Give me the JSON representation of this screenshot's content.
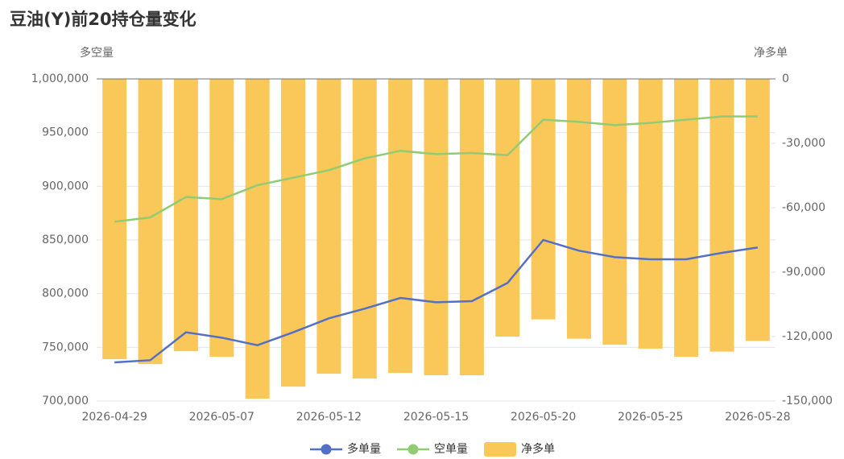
{
  "chart_data": {
    "type": "bar",
    "title": "豆油(Y)前20持仓量变化",
    "y_label": "多空量",
    "y2_label": "净多单",
    "categories": [
      "2026-04-29",
      null,
      null,
      "2026-05-07",
      null,
      null,
      "2026-05-12",
      null,
      null,
      "2026-05-15",
      null,
      null,
      "2026-05-20",
      null,
      null,
      "2026-05-25",
      null,
      null,
      "2026-05-28"
    ],
    "series": [
      {
        "name": "多单量",
        "type": "line",
        "color": "#5470c6",
        "axis": "y",
        "values": [
          736000,
          738000,
          764000,
          759000,
          752000,
          764000,
          777000,
          786000,
          796000,
          792000,
          793000,
          810000,
          850000,
          840000,
          834000,
          832000,
          832000,
          838000,
          843000
        ]
      },
      {
        "name": "空单量",
        "type": "line",
        "color": "#91cc75",
        "axis": "y",
        "values": [
          867000,
          871000,
          890000,
          888000,
          901000,
          908000,
          915000,
          926000,
          933000,
          930000,
          931000,
          929000,
          962000,
          960000,
          957000,
          959000,
          962000,
          965000,
          965000
        ]
      },
      {
        "name": "净多单",
        "type": "bar",
        "color": "#fac858",
        "axis": "y2",
        "values": [
          -130500,
          -132800,
          -126800,
          -129400,
          -148900,
          -143300,
          -137300,
          -139500,
          -136900,
          -138000,
          -138000,
          -120000,
          -112000,
          -121000,
          -123800,
          -125600,
          -129400,
          -127000,
          -122000
        ]
      }
    ],
    "ylim": [
      700000,
      1000000
    ],
    "yticks": [
      {
        "value": 700000,
        "label": "700,000"
      },
      {
        "value": 750000,
        "label": "750,000"
      },
      {
        "value": 800000,
        "label": "800,000"
      },
      {
        "value": 850000,
        "label": "850,000"
      },
      {
        "value": 900000,
        "label": "900,000"
      },
      {
        "value": 950000,
        "label": "950,000"
      },
      {
        "value": 1000000,
        "label": "1,000,000"
      }
    ],
    "y2lim": [
      -150000,
      0
    ],
    "y2ticks": [
      {
        "value": -150000,
        "label": "-150,000"
      },
      {
        "value": -120000,
        "label": "-120,000"
      },
      {
        "value": -90000,
        "label": "-90,000"
      },
      {
        "value": -60000,
        "label": "-60,000"
      },
      {
        "value": -30000,
        "label": "-30,000"
      },
      0
    ],
    "grid": true,
    "legend": "bottom"
  }
}
